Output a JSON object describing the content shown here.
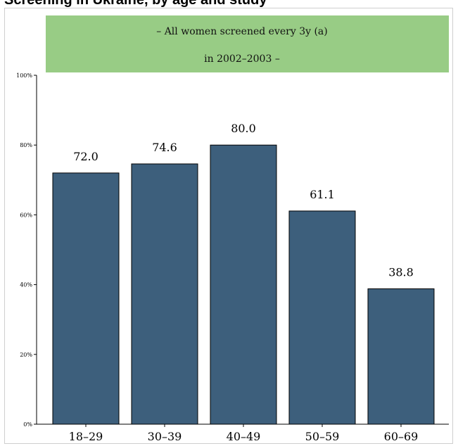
{
  "page": {
    "title": "Screening in Ukraine, by age and study"
  },
  "banner": {
    "line1": "– All women screened every 3y (a)",
    "line2": "in 2002–2003 –",
    "color": "#98cc85"
  },
  "colors": {
    "bar_fill": "#3d5f7c",
    "bar_stroke": "#000000",
    "frame_border": "#cfcfcf"
  },
  "chart_data": {
    "type": "bar",
    "title": "",
    "xlabel": "",
    "ylabel": "",
    "categories": [
      "18–29",
      "30–39",
      "40–49",
      "50–59",
      "60–69"
    ],
    "values": [
      72.0,
      74.6,
      80.0,
      61.1,
      38.8
    ],
    "value_labels": [
      "72.0",
      "74.6",
      "80.0",
      "61.1",
      "38.8"
    ],
    "ylim": [
      0,
      100
    ],
    "yticks": [
      0,
      20,
      40,
      60,
      80,
      100
    ],
    "ytick_labels": [
      "0%",
      "20%",
      "40%",
      "60%",
      "80%",
      "100%"
    ],
    "grid": false,
    "legend": "none"
  }
}
